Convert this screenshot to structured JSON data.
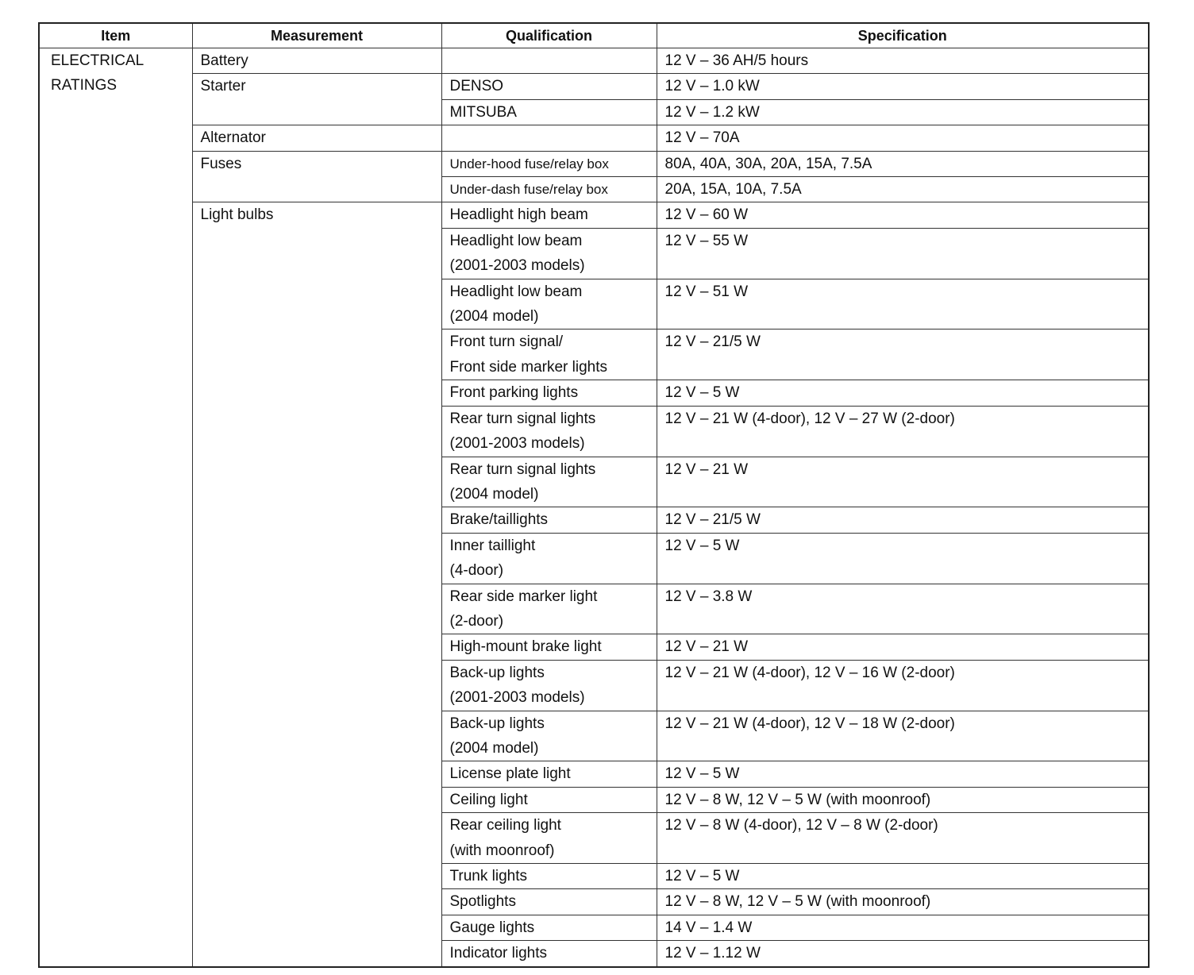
{
  "headers": {
    "item": "Item",
    "measurement": "Measurement",
    "qualification": "Qualification",
    "specification": "Specification"
  },
  "item": [
    "ELECTRICAL",
    "RATINGS"
  ],
  "groups": [
    {
      "measurement": "Battery",
      "rows": [
        {
          "qualification": [
            ""
          ],
          "specification": "12 V – 36 AH/5 hours"
        }
      ]
    },
    {
      "measurement": "Starter",
      "rows": [
        {
          "qualification": [
            "DENSO"
          ],
          "specification": "12 V – 1.0 kW"
        },
        {
          "qualification": [
            "MITSUBA"
          ],
          "specification": "12 V – 1.2 kW"
        }
      ]
    },
    {
      "measurement": "Alternator",
      "rows": [
        {
          "qualification": [
            ""
          ],
          "specification": "12 V – 70A"
        }
      ]
    },
    {
      "measurement": "Fuses",
      "rows": [
        {
          "qualification": [
            "Under-hood fuse/relay box"
          ],
          "specification": "80A, 40A, 30A, 20A, 15A, 7.5A"
        },
        {
          "qualification": [
            "Under-dash fuse/relay box"
          ],
          "specification": "20A, 15A, 10A, 7.5A"
        }
      ]
    },
    {
      "measurement": "Light bulbs",
      "rows": [
        {
          "qualification": [
            "Headlight high beam"
          ],
          "specification": "12 V – 60 W"
        },
        {
          "qualification": [
            "Headlight low beam",
            "(2001-2003 models)"
          ],
          "specification": "12 V – 55 W"
        },
        {
          "qualification": [
            "Headlight low beam",
            "(2004 model)"
          ],
          "specification": "12 V – 51 W"
        },
        {
          "qualification": [
            "Front turn signal/",
            "Front side marker lights"
          ],
          "specification": "12 V – 21/5 W"
        },
        {
          "qualification": [
            "Front parking lights"
          ],
          "specification": "12 V – 5 W"
        },
        {
          "qualification": [
            "Rear turn signal lights",
            "(2001-2003 models)"
          ],
          "specification": "12 V – 21 W (4-door), 12 V – 27 W (2-door)"
        },
        {
          "qualification": [
            "Rear turn signal lights",
            "(2004 model)"
          ],
          "specification": "12 V – 21 W"
        },
        {
          "qualification": [
            "Brake/taillights"
          ],
          "specification": "12 V – 21/5 W"
        },
        {
          "qualification": [
            "Inner taillight",
            "(4-door)"
          ],
          "specification": "12 V – 5 W"
        },
        {
          "qualification": [
            "Rear side marker light",
            "(2-door)"
          ],
          "specification": "12 V – 3.8 W"
        },
        {
          "qualification": [
            "High-mount brake light"
          ],
          "specification": "12 V – 21 W"
        },
        {
          "qualification": [
            "Back-up lights",
            "(2001-2003 models)"
          ],
          "specification": "12 V – 21 W (4-door), 12 V – 16 W (2-door)"
        },
        {
          "qualification": [
            "Back-up lights",
            "(2004 model)"
          ],
          "specification": "12 V – 21 W (4-door), 12 V – 18 W (2-door)"
        },
        {
          "qualification": [
            "License plate light"
          ],
          "specification": "12 V – 5 W"
        },
        {
          "qualification": [
            "Ceiling light"
          ],
          "specification": "12 V – 8 W, 12 V – 5 W (with moonroof)"
        },
        {
          "qualification": [
            "Rear ceiling light",
            "(with moonroof)"
          ],
          "specification": "12 V – 8 W (4-door), 12 V – 8 W (2-door)"
        },
        {
          "qualification": [
            "Trunk lights"
          ],
          "specification": "12 V – 5 W"
        },
        {
          "qualification": [
            "Spotlights"
          ],
          "specification": "12 V – 8 W, 12 V – 5 W (with moonroof)"
        },
        {
          "qualification": [
            "Gauge lights"
          ],
          "specification": "14 V – 1.4 W"
        },
        {
          "qualification": [
            "Indicator lights"
          ],
          "specification": "12 V – 1.12 W"
        }
      ]
    }
  ]
}
